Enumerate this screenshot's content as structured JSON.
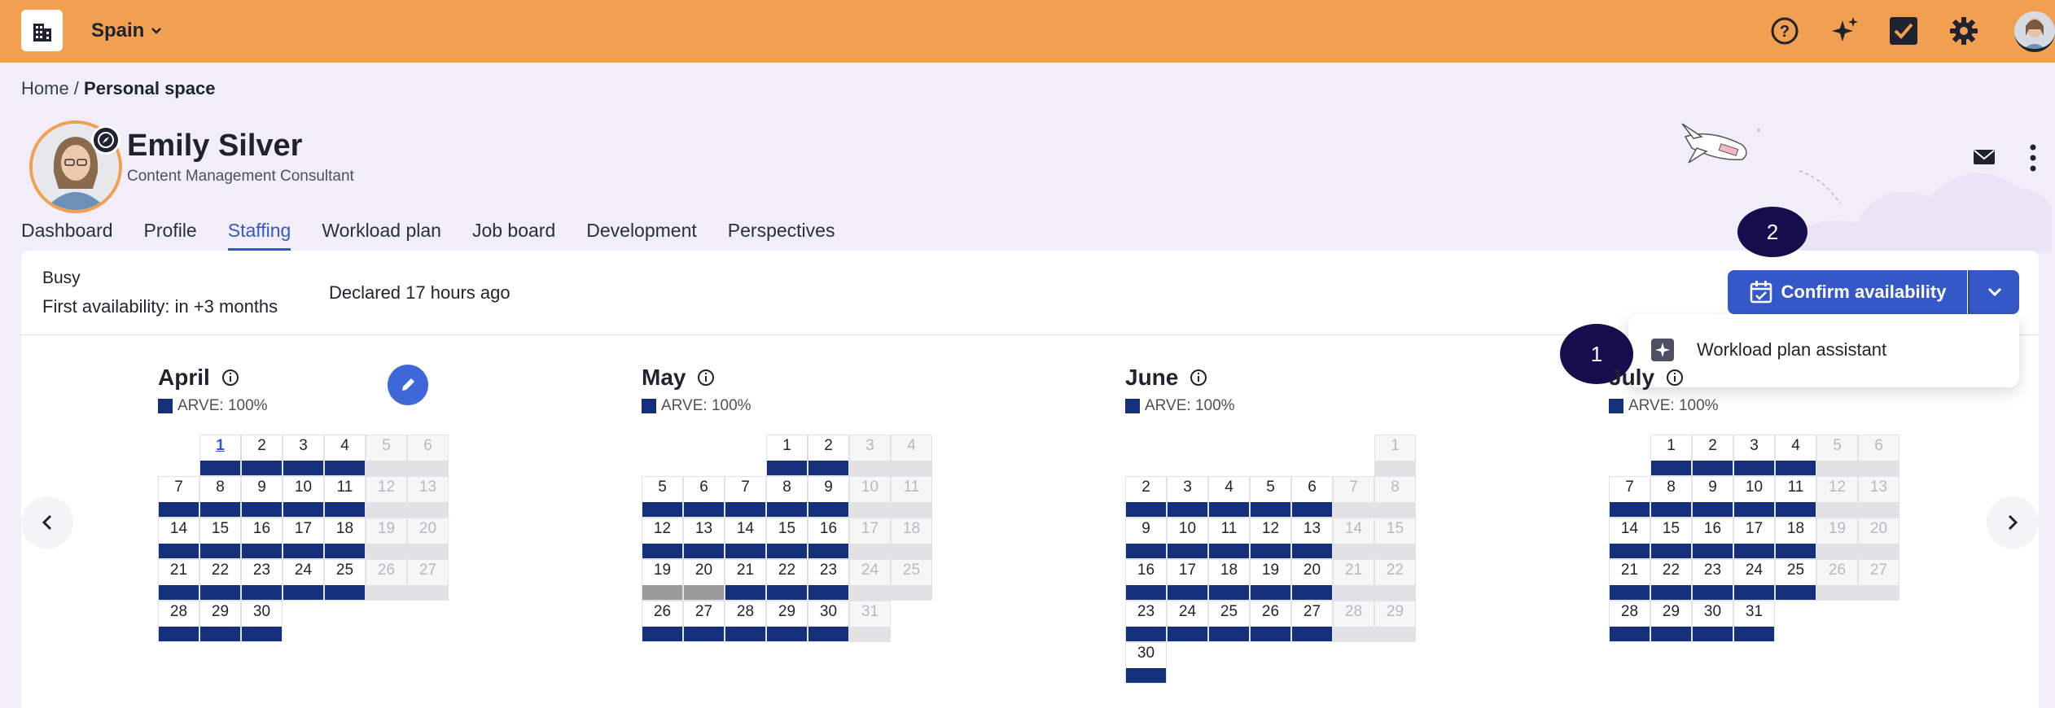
{
  "topbar": {
    "country": "Spain",
    "accent": "#f19f50"
  },
  "breadcrumb": {
    "home": "Home",
    "separator": " / ",
    "current": "Personal space"
  },
  "profile": {
    "name": "Emily Silver",
    "role": "Content Management Consultant"
  },
  "tabs": [
    "Dashboard",
    "Profile",
    "Staffing",
    "Workload plan",
    "Job board",
    "Development",
    "Perspectives"
  ],
  "active_tab": "Staffing",
  "availability": {
    "status": "Busy",
    "first_availability": "First availability: in +3 months",
    "declared": "Declared 17 hours ago",
    "confirm_label": "Confirm availability"
  },
  "dropdown": {
    "item_label": "Workload plan assistant"
  },
  "markers": {
    "one": "1",
    "two": "2"
  },
  "arve_label": "ARVE: 100%",
  "months": [
    {
      "title": "April",
      "start_col": 1,
      "days": 30,
      "today": 1,
      "grey_days": []
    },
    {
      "title": "May",
      "start_col": 3,
      "days": 31,
      "today": null,
      "grey_days": [
        19,
        20
      ]
    },
    {
      "title": "June",
      "start_col": 6,
      "days": 30,
      "today": null,
      "grey_days": []
    },
    {
      "title": "July",
      "start_col": 1,
      "days": 31,
      "today": null,
      "grey_days": []
    }
  ],
  "colors": {
    "primary": "#3558c8",
    "staffed": "#14307a",
    "marker": "#140e4d"
  }
}
